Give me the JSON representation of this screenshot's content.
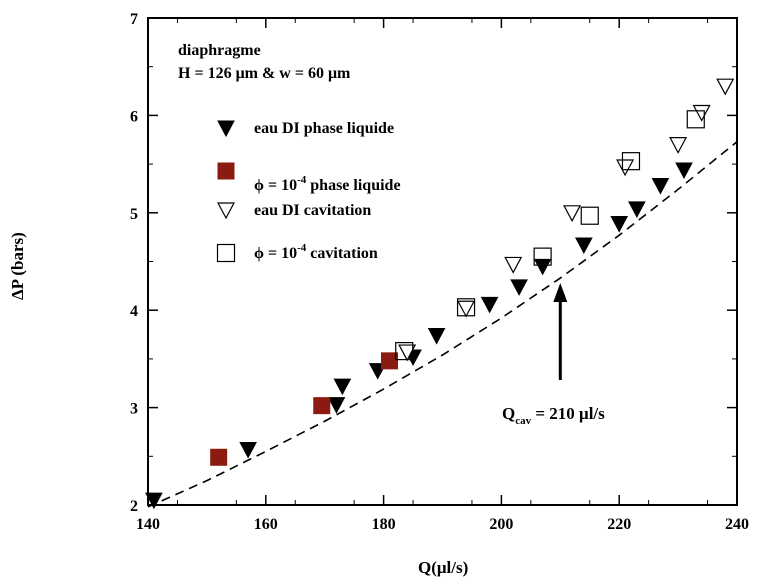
{
  "chart_data": {
    "type": "scatter",
    "xlabel": "Q(μl/s)",
    "ylabel": "ΔP (bars)",
    "xlim": [
      140,
      240
    ],
    "ylim": [
      2,
      7
    ],
    "xticks": [
      140,
      160,
      180,
      200,
      220,
      240
    ],
    "yticks": [
      2,
      3,
      4,
      5,
      6,
      7
    ],
    "grid": false,
    "legend_position": "top-left",
    "annotations": {
      "line1": "diaphragme",
      "line2": "H = 126 μm & w = 60 μm",
      "qcav_label": "Q",
      "qcav_sub": "cav",
      "qcav_value": "= 210 μl/s",
      "qcav_arrow_x": 210
    },
    "series": [
      {
        "name": "eau DI phase liquide",
        "marker": "triangle-down-filled",
        "color": "#000000",
        "x": [
          141,
          157,
          172,
          173,
          179,
          185,
          189,
          198,
          203,
          207,
          214,
          220,
          223,
          227,
          231
        ],
        "y": [
          2.05,
          2.57,
          3.03,
          3.22,
          3.38,
          3.52,
          3.74,
          4.06,
          4.24,
          4.45,
          4.67,
          4.89,
          5.04,
          5.28,
          5.44
        ]
      },
      {
        "name_main": "ϕ = 10",
        "name_sup": "-4",
        "name_tail": " phase liquide",
        "marker": "square-filled",
        "color": "#8b1a10",
        "x": [
          152,
          169.5,
          181
        ],
        "y": [
          2.49,
          3.02,
          3.48
        ]
      },
      {
        "name": "eau DI cavitation",
        "marker": "triangle-down-open",
        "color": "#000000",
        "x": [
          184,
          194,
          202,
          212,
          221,
          230,
          234,
          238
        ],
        "y": [
          3.57,
          4.02,
          4.47,
          5.0,
          5.47,
          5.7,
          6.03,
          6.3
        ]
      },
      {
        "name_main": "ϕ = 10",
        "name_sup": "-4",
        "name_tail": " cavitation",
        "marker": "square-open",
        "color": "#000000",
        "x": [
          183.5,
          194,
          207,
          215,
          222,
          233
        ],
        "y": [
          3.58,
          4.03,
          4.55,
          4.97,
          5.53,
          5.96
        ]
      }
    ],
    "fit_line": {
      "style": "dashed",
      "x": [
        140,
        150,
        160,
        170,
        180,
        190,
        200,
        210,
        220,
        230,
        240
      ],
      "y": [
        1.98,
        2.25,
        2.55,
        2.86,
        3.19,
        3.54,
        3.92,
        4.33,
        4.77,
        5.24,
        5.73
      ]
    }
  }
}
